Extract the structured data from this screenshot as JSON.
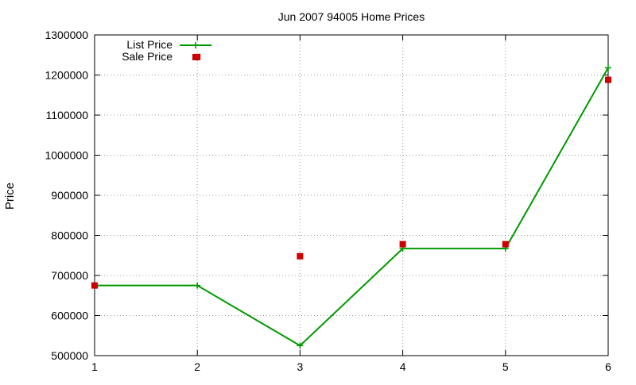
{
  "chart_data": {
    "type": "line",
    "title": "Jun 2007 94005 Home Prices",
    "xlabel": "",
    "ylabel": "Price",
    "x": [
      1,
      2,
      3,
      4,
      5,
      6
    ],
    "xlim": [
      1,
      6
    ],
    "ylim": [
      500000,
      1300000
    ],
    "xticks": [
      "1",
      "2",
      "3",
      "4",
      "5",
      "6"
    ],
    "yticks": [
      "500000",
      "600000",
      "700000",
      "800000",
      "900000",
      "1000000",
      "1100000",
      "1200000",
      "1300000"
    ],
    "grid": true,
    "legend_position": "top-left",
    "series": [
      {
        "name": "List Price",
        "kind": "line+cross",
        "color": "#009900",
        "values": [
          675000,
          675000,
          525000,
          767000,
          767000,
          1218000
        ]
      },
      {
        "name": "Sale Price",
        "kind": "points-square",
        "color": "#cc0000",
        "values": [
          675000,
          1245000,
          748000,
          778000,
          778000,
          1188000
        ]
      }
    ]
  }
}
